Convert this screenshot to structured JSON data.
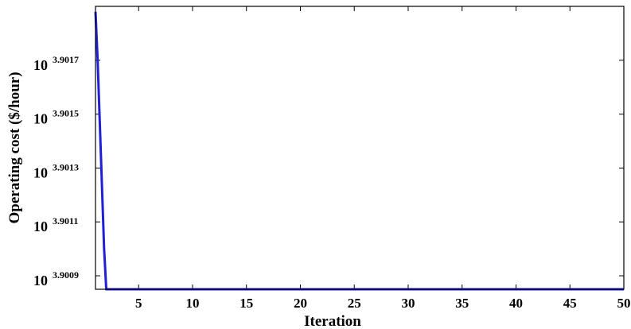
{
  "chart_data": {
    "type": "line",
    "title": "",
    "xlabel": "Iteration",
    "ylabel": "Operating cost ($/hour)",
    "y_scale": "log",
    "x_ticks": [
      5,
      10,
      15,
      20,
      25,
      30,
      35,
      40,
      45,
      50
    ],
    "y_ticks": [
      {
        "base": "10",
        "exponent": "3.9009",
        "value": 3.9009
      },
      {
        "base": "10",
        "exponent": "3.9011",
        "value": 3.9011
      },
      {
        "base": "10",
        "exponent": "3.9013",
        "value": 3.9013
      },
      {
        "base": "10",
        "exponent": "3.9015",
        "value": 3.9015
      },
      {
        "base": "10",
        "exponent": "3.9017",
        "value": 3.9017
      }
    ],
    "xlim": [
      1,
      50
    ],
    "ylim_log10": [
      3.90085,
      3.9019
    ],
    "grid": false,
    "legend": "none",
    "series": [
      {
        "color": "#1f1fd6",
        "x": [
          1,
          1.2,
          1.5,
          1.8,
          2,
          3,
          4,
          5,
          6,
          7,
          8,
          9,
          10,
          11,
          12,
          13,
          14,
          15,
          16,
          17,
          18,
          19,
          20,
          21,
          22,
          23,
          24,
          25,
          26,
          27,
          28,
          29,
          30,
          31,
          32,
          33,
          34,
          35,
          36,
          37,
          38,
          39,
          40,
          41,
          42,
          43,
          44,
          45,
          46,
          47,
          48,
          49,
          50
        ],
        "log10_y": [
          3.90188,
          3.9017,
          3.90135,
          3.901,
          3.90085,
          3.90085,
          3.90085,
          3.90085,
          3.90085,
          3.90085,
          3.90085,
          3.90085,
          3.90085,
          3.90085,
          3.90085,
          3.90085,
          3.90085,
          3.90085,
          3.90085,
          3.90085,
          3.90085,
          3.90085,
          3.90085,
          3.90085,
          3.90085,
          3.90085,
          3.90085,
          3.90085,
          3.90085,
          3.90085,
          3.90085,
          3.90085,
          3.90085,
          3.90085,
          3.90085,
          3.90085,
          3.90085,
          3.90085,
          3.90085,
          3.90085,
          3.90085,
          3.90085,
          3.90085,
          3.90085,
          3.90085,
          3.90085,
          3.90085,
          3.90085,
          3.90085,
          3.90085,
          3.90085,
          3.90085,
          3.90085
        ]
      }
    ]
  }
}
